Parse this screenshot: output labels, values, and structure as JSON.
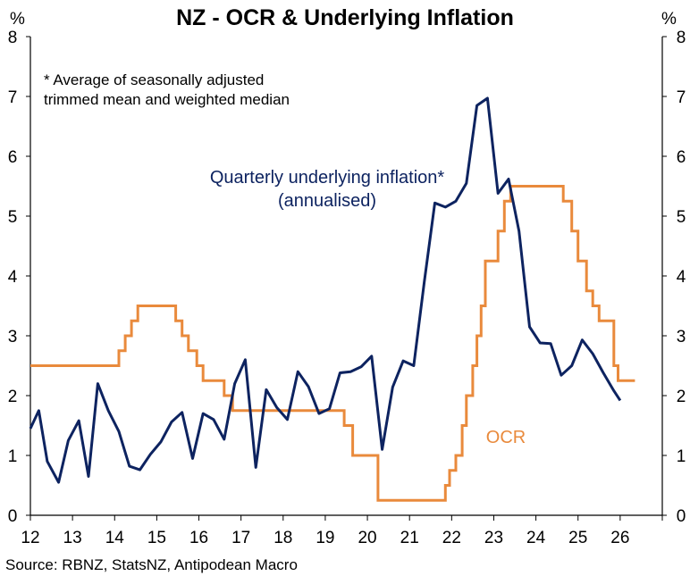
{
  "chart_data": {
    "type": "line",
    "title": "NZ - OCR & Underlying Inflation",
    "ylabel_left": "%",
    "ylabel_right": "%",
    "ylim": [
      0,
      8
    ],
    "yticks": [
      "0",
      "1",
      "2",
      "3",
      "4",
      "5",
      "6",
      "7",
      "8"
    ],
    "xlim": [
      12,
      27
    ],
    "xticks": [
      "12",
      "13",
      "14",
      "15",
      "16",
      "17",
      "18",
      "19",
      "20",
      "21",
      "22",
      "23",
      "24",
      "25",
      "26"
    ],
    "grid": false,
    "note_lines": [
      "* Average of seasonally adjusted",
      "trimmed mean and weighted median"
    ],
    "source": "Source: RBNZ, StatsNZ, Antipodean Macro",
    "colors": {
      "inflation": "#0d2360",
      "ocr": "#e98a3c",
      "axis": "#000000"
    },
    "series": [
      {
        "name": "Quarterly underlying inflation* (annualised)",
        "label_lines": [
          "Quarterly underlying inflation*",
          "(annualised)"
        ],
        "style": "line",
        "x": [
          12.0,
          12.2,
          12.4,
          12.67,
          12.9,
          13.15,
          13.38,
          13.6,
          13.85,
          14.1,
          14.35,
          14.6,
          14.85,
          15.1,
          15.35,
          15.6,
          15.85,
          16.1,
          16.35,
          16.6,
          16.85,
          17.1,
          17.35,
          17.6,
          17.85,
          18.1,
          18.35,
          18.6,
          18.85,
          19.1,
          19.35,
          19.6,
          19.85,
          20.1,
          20.35,
          20.6,
          20.85,
          21.1,
          21.35,
          21.6,
          21.85,
          22.1,
          22.35,
          22.6,
          22.85,
          23.1,
          23.35,
          23.6,
          23.85,
          24.1,
          24.35,
          24.6,
          24.85,
          25.1,
          25.35,
          25.6,
          25.85,
          26.0
        ],
        "values": [
          1.45,
          1.75,
          0.9,
          0.55,
          1.25,
          1.58,
          0.65,
          2.2,
          1.75,
          1.4,
          0.82,
          0.76,
          1.02,
          1.23,
          1.56,
          1.72,
          0.95,
          1.7,
          1.6,
          1.27,
          2.2,
          2.6,
          0.8,
          2.1,
          1.8,
          1.6,
          2.4,
          2.15,
          1.7,
          1.78,
          2.38,
          2.4,
          2.48,
          2.66,
          1.1,
          2.14,
          2.58,
          2.5,
          3.9,
          5.22,
          5.15,
          5.25,
          5.55,
          6.85,
          6.97,
          5.38,
          5.62,
          4.75,
          3.15,
          2.88,
          2.87,
          2.34,
          2.5,
          2.93,
          2.7,
          2.38,
          2.08,
          1.92
        ]
      },
      {
        "name": "OCR",
        "label_lines": [
          "OCR"
        ],
        "style": "step",
        "x": [
          12.0,
          14.1,
          14.25,
          14.4,
          14.55,
          15.45,
          15.6,
          15.75,
          15.95,
          16.1,
          16.25,
          16.6,
          16.8,
          17.0,
          19.25,
          19.45,
          19.65,
          20.1,
          20.25,
          21.85,
          21.95,
          22.1,
          22.25,
          22.35,
          22.5,
          22.6,
          22.7,
          22.8,
          22.95,
          23.1,
          23.25,
          23.4,
          23.5,
          24.3,
          24.65,
          24.85,
          25.0,
          25.2,
          25.35,
          25.5,
          25.6,
          25.85,
          25.95,
          26.05
        ],
        "values": [
          2.5,
          2.75,
          3.0,
          3.25,
          3.5,
          3.25,
          3.0,
          2.75,
          2.5,
          2.25,
          2.25,
          2.0,
          1.75,
          1.75,
          1.75,
          1.5,
          1.0,
          1.0,
          0.25,
          0.5,
          0.75,
          1.0,
          1.5,
          2.0,
          2.5,
          3.0,
          3.5,
          4.25,
          4.25,
          4.75,
          5.25,
          5.5,
          5.5,
          5.5,
          5.25,
          4.75,
          4.25,
          3.75,
          3.5,
          3.25,
          3.25,
          2.5,
          2.25,
          2.25
        ],
        "end_x": 26.35
      }
    ]
  }
}
